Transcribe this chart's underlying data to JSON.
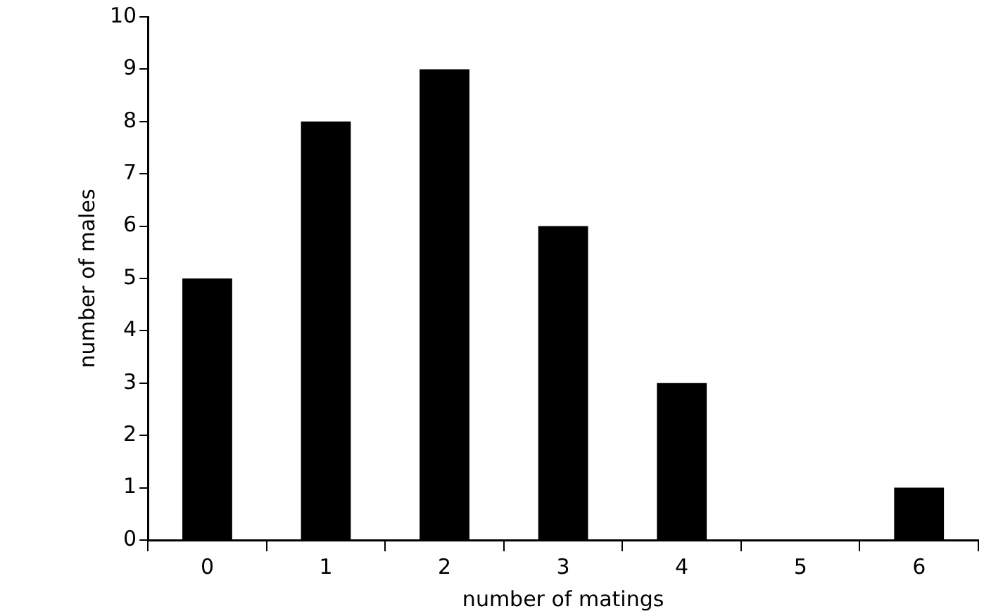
{
  "chart_data": {
    "type": "bar",
    "xlabel": "number of matings",
    "ylabel": "number of males",
    "categories": [
      "0",
      "1",
      "2",
      "3",
      "4",
      "5",
      "6"
    ],
    "values": [
      5,
      8,
      9,
      6,
      3,
      0,
      1
    ],
    "color": "#000000",
    "ylim": [
      0,
      10
    ],
    "yticks": [
      0,
      1,
      2,
      3,
      4,
      5,
      6,
      7,
      8,
      9,
      10
    ],
    "grid": false,
    "legend": false
  }
}
